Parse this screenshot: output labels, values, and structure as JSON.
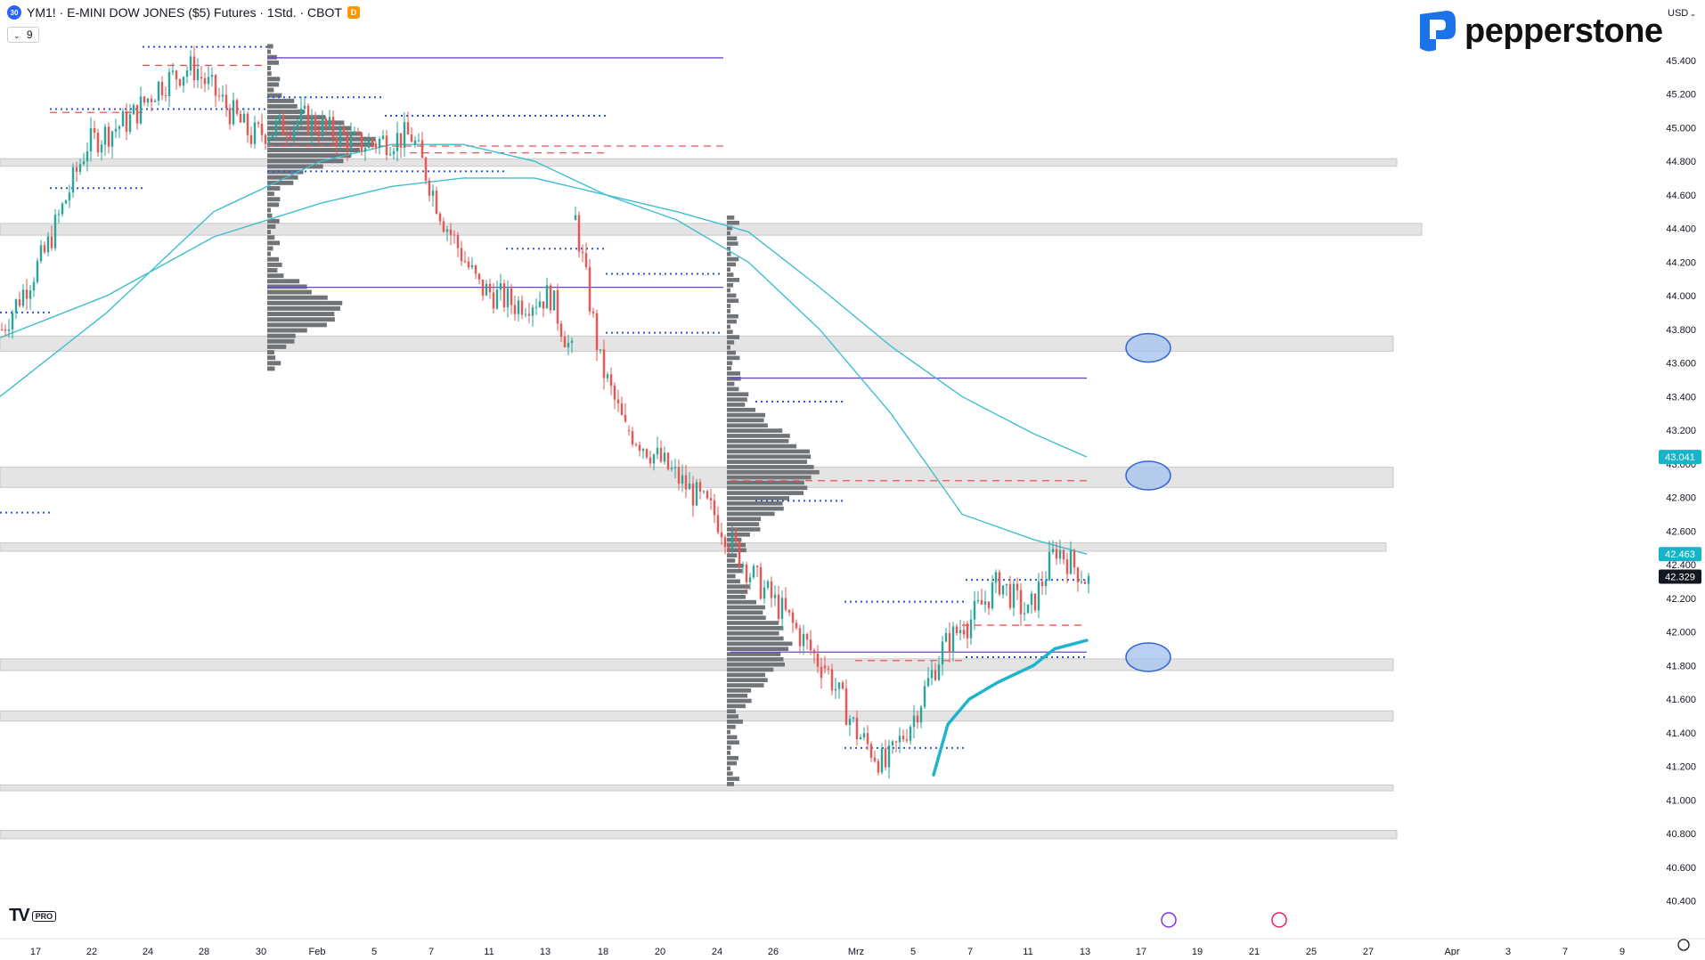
{
  "header": {
    "symbol_badge": "30",
    "title": "YM1! · E-MINI DOW JONES ($5) Futures · 1Std. · CBOT",
    "exchange_badge": "D",
    "volume_chip": "9"
  },
  "brand": {
    "name": "pepperstone"
  },
  "currency": "USD",
  "footer": {
    "tv_logo": "TV",
    "tv_pro": "PRO"
  },
  "colors": {
    "up": "#26a69a",
    "down": "#ef5350",
    "zone_fill": "#e4e4e4",
    "zone_stroke": "#c8c8c8",
    "ema": "#3fbfce",
    "vwap": "#1eb4cc",
    "poc_line": "#6c49c4",
    "dotted": "#2f57d0",
    "dashed_red": "#ef5350",
    "profile_bar": "#707378",
    "marker_fill": "#a9c4f0",
    "marker_stroke": "#2f67d8",
    "badge_ema": "#16b4c9"
  },
  "chart_data": {
    "type": "candlestick",
    "instrument": "YM1!",
    "timeframe": "1Std.",
    "ylim": [
      40250,
      45600
    ],
    "y_ticks": [
      "45.400",
      "45.200",
      "45.000",
      "44.800",
      "44.600",
      "44.400",
      "44.200",
      "44.000",
      "43.800",
      "43.600",
      "43.400",
      "43.200",
      "43.000",
      "42.800",
      "42.600",
      "42.400",
      "42.200",
      "42.000",
      "41.800",
      "41.600",
      "41.400",
      "41.200",
      "41.000",
      "40.800",
      "40.600",
      "40.400"
    ],
    "x_ticks": [
      "17",
      "22",
      "24",
      "28",
      "30",
      "Feb",
      "5",
      "7",
      "11",
      "13",
      "18",
      "20",
      "24",
      "26",
      "Mrz",
      "5",
      "7",
      "11",
      "13",
      "17",
      "19",
      "21",
      "25",
      "27",
      "Apr",
      "3",
      "7",
      "9"
    ],
    "price_labels": [
      {
        "label": "43.041",
        "value": 43041,
        "kind": "ema"
      },
      {
        "label": "42.463",
        "value": 42463,
        "kind": "ema"
      },
      {
        "label": "42.329",
        "value": 42329,
        "kind": "last"
      }
    ],
    "segments": [
      {
        "i0": 0,
        "i1": 55,
        "path": [
          [
            0,
            43800
          ],
          [
            12,
            44250
          ],
          [
            24,
            44900
          ],
          [
            36,
            45050
          ],
          [
            44,
            45250
          ],
          [
            52,
            45350
          ],
          [
            55,
            45350
          ]
        ]
      },
      {
        "i0": 56,
        "i1": 115,
        "path": [
          [
            56,
            45300
          ],
          [
            70,
            44950
          ],
          [
            85,
            45050
          ],
          [
            100,
            44900
          ],
          [
            115,
            44950
          ]
        ]
      },
      {
        "i0": 116,
        "i1": 160,
        "path": [
          [
            116,
            44900
          ],
          [
            124,
            44450
          ],
          [
            134,
            44050
          ],
          [
            144,
            43950
          ],
          [
            154,
            44000
          ],
          [
            160,
            43650
          ]
        ]
      },
      {
        "i0": 161,
        "i1": 175,
        "path": [
          [
            161,
            44450
          ],
          [
            168,
            43600
          ],
          [
            175,
            43200
          ]
        ]
      },
      {
        "i0": 176,
        "i1": 230,
        "path": [
          [
            176,
            43200
          ],
          [
            188,
            42950
          ],
          [
            200,
            42700
          ],
          [
            210,
            42350
          ],
          [
            220,
            42100
          ],
          [
            230,
            41800
          ]
        ]
      },
      {
        "i0": 231,
        "i1": 270,
        "path": [
          [
            231,
            41800
          ],
          [
            240,
            41400
          ],
          [
            248,
            41200
          ],
          [
            256,
            41500
          ],
          [
            264,
            41900
          ],
          [
            270,
            42050
          ]
        ]
      },
      {
        "i0": 271,
        "i1": 305,
        "path": [
          [
            271,
            42050
          ],
          [
            280,
            42300
          ],
          [
            288,
            42100
          ],
          [
            296,
            42500
          ],
          [
            305,
            42300
          ]
        ]
      }
    ],
    "zones": [
      {
        "top": 44815,
        "bottom": 44770,
        "x_end_index": 392
      },
      {
        "top": 44430,
        "bottom": 44360,
        "x_end_index": 399
      },
      {
        "top": 43760,
        "bottom": 43670,
        "x_end_index": 391
      },
      {
        "top": 42980,
        "bottom": 42860,
        "x_end_index": 391
      },
      {
        "top": 42530,
        "bottom": 42480,
        "x_end_index": 389
      },
      {
        "top": 41840,
        "bottom": 41770,
        "x_end_index": 391
      },
      {
        "top": 41530,
        "bottom": 41470,
        "x_end_index": 391
      },
      {
        "top": 41090,
        "bottom": 41055,
        "x_end_index": 391
      },
      {
        "top": 40820,
        "bottom": 40770,
        "x_end_index": 392
      }
    ],
    "poc_lines": [
      {
        "value": 45415,
        "i0": 75,
        "i1": 203
      },
      {
        "value": 44050,
        "i0": 75,
        "i1": 203
      },
      {
        "value": 43510,
        "i0": 205,
        "i1": 305
      },
      {
        "value": 41880,
        "i0": 205,
        "i1": 305
      }
    ],
    "dashed_lines": [
      {
        "value": 44890,
        "i0": 75,
        "i1": 203
      },
      {
        "value": 42900,
        "i0": 205,
        "i1": 305
      },
      {
        "value": 42040,
        "i0": 270,
        "i1": 305
      },
      {
        "value": 41830,
        "i0": 240,
        "i1": 270
      },
      {
        "value": 45090,
        "i0": 14,
        "i1": 40
      },
      {
        "value": 45370,
        "i0": 40,
        "i1": 75
      },
      {
        "value": 44850,
        "i0": 115,
        "i1": 170
      }
    ],
    "dotted_lines": [
      {
        "value": 45480,
        "i0": 40,
        "i1": 75
      },
      {
        "value": 45110,
        "i0": 14,
        "i1": 75
      },
      {
        "value": 44640,
        "i0": 14,
        "i1": 41
      },
      {
        "value": 43900,
        "i0": 0,
        "i1": 14
      },
      {
        "value": 42710,
        "i0": 0,
        "i1": 14
      },
      {
        "value": 45180,
        "i0": 75,
        "i1": 108
      },
      {
        "value": 45070,
        "i0": 108,
        "i1": 170
      },
      {
        "value": 44740,
        "i0": 75,
        "i1": 142
      },
      {
        "value": 44280,
        "i0": 142,
        "i1": 170
      },
      {
        "value": 44130,
        "i0": 170,
        "i1": 203
      },
      {
        "value": 43780,
        "i0": 170,
        "i1": 203
      },
      {
        "value": 43370,
        "i0": 212,
        "i1": 237
      },
      {
        "value": 42780,
        "i0": 212,
        "i1": 237
      },
      {
        "value": 42180,
        "i0": 237,
        "i1": 271
      },
      {
        "value": 41310,
        "i0": 237,
        "i1": 271
      },
      {
        "value": 42310,
        "i0": 271,
        "i1": 305
      },
      {
        "value": 41850,
        "i0": 271,
        "i1": 305
      }
    ],
    "ema_lines": [
      {
        "name": "",
        "points": [
          [
            0,
            43400
          ],
          [
            30,
            43900
          ],
          [
            60,
            44500
          ],
          [
            90,
            44800
          ],
          [
            110,
            44900
          ],
          [
            130,
            44900
          ],
          [
            150,
            44800
          ],
          [
            170,
            44600
          ],
          [
            190,
            44450
          ],
          [
            210,
            44200
          ],
          [
            230,
            43800
          ],
          [
            250,
            43300
          ],
          [
            270,
            42700
          ],
          [
            290,
            42550
          ],
          [
            305,
            42463
          ]
        ]
      },
      {
        "name": "",
        "points": [
          [
            0,
            43750
          ],
          [
            30,
            44000
          ],
          [
            60,
            44350
          ],
          [
            90,
            44550
          ],
          [
            110,
            44650
          ],
          [
            130,
            44700
          ],
          [
            150,
            44700
          ],
          [
            170,
            44600
          ],
          [
            190,
            44500
          ],
          [
            210,
            44380
          ],
          [
            230,
            44050
          ],
          [
            250,
            43700
          ],
          [
            270,
            43400
          ],
          [
            290,
            43180
          ],
          [
            305,
            43041
          ]
        ]
      }
    ],
    "vwap_line": {
      "points": [
        [
          262,
          41150
        ],
        [
          266,
          41450
        ],
        [
          272,
          41600
        ],
        [
          280,
          41700
        ],
        [
          290,
          41800
        ],
        [
          296,
          41900
        ],
        [
          305,
          41950
        ]
      ]
    },
    "volume_profiles": [
      {
        "x_index": 75,
        "v_min": 43550,
        "v_max": 45500,
        "bins": 60,
        "peak": 44900,
        "peak_width": 110,
        "second_peak": 43900,
        "second_width": 75
      },
      {
        "x_index": 204,
        "v_min": 41080,
        "v_max": 44480,
        "bins": 110,
        "peak": 42950,
        "peak_width": 90,
        "second_peak": 41900,
        "second_width": 60
      }
    ],
    "markers": [
      {
        "x_index": 316,
        "value": 43690
      },
      {
        "x_index": 316,
        "value": 42930
      },
      {
        "x_index": 316,
        "value": 41850
      }
    ]
  }
}
